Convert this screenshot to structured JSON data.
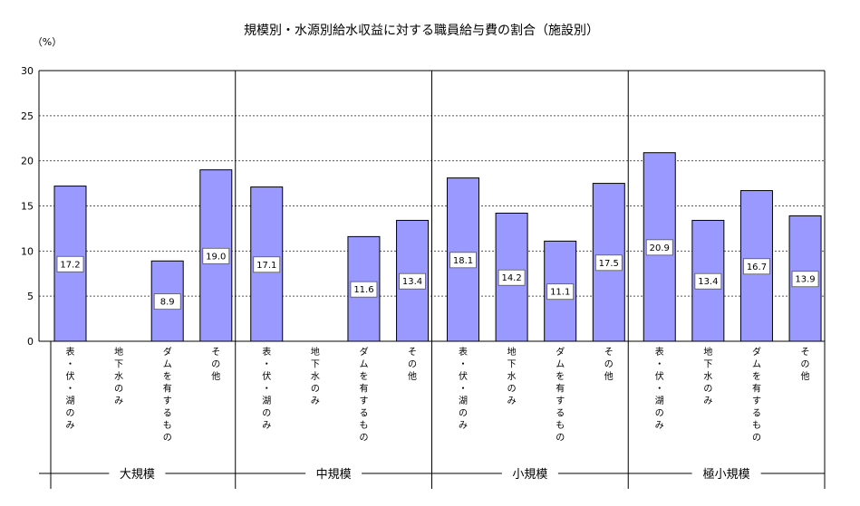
{
  "chart_data": {
    "type": "bar",
    "title": "規模別・水源別給水収益に対する職員給与費の割合（施設別）",
    "unit_label": "（%）",
    "ylim": [
      0,
      30
    ],
    "yticks": [
      0,
      5,
      10,
      15,
      20,
      25,
      30
    ],
    "grid": "horizontal-dashed",
    "bar_color": "#9999ff",
    "groups": [
      {
        "name": "大規模",
        "categories": [
          "表・伏・湖のみ",
          "地下水のみ",
          "ダムを有するもの",
          "その他"
        ],
        "values": [
          17.2,
          null,
          8.9,
          19.0
        ],
        "labels": [
          "17.2",
          null,
          "8.9",
          "19.0"
        ]
      },
      {
        "name": "中規模",
        "categories": [
          "表・伏・湖のみ",
          "地下水のみ",
          "ダムを有するもの",
          "その他"
        ],
        "values": [
          17.1,
          null,
          11.6,
          13.4
        ],
        "labels": [
          "17.1",
          null,
          "11.6",
          "13.4"
        ]
      },
      {
        "name": "小規模",
        "categories": [
          "表・伏・湖のみ",
          "地下水のみ",
          "ダムを有するもの",
          "その他"
        ],
        "values": [
          18.1,
          14.2,
          11.1,
          17.5
        ],
        "labels": [
          "18.1",
          "14.2",
          "11.1",
          "17.5"
        ]
      },
      {
        "name": "極小規模",
        "categories": [
          "表・伏・湖のみ",
          "地下水のみ",
          "ダムを有するもの",
          "その他"
        ],
        "values": [
          20.9,
          13.4,
          16.7,
          13.9
        ],
        "labels": [
          "20.9",
          "13.4",
          "16.7",
          "13.9"
        ]
      }
    ]
  }
}
